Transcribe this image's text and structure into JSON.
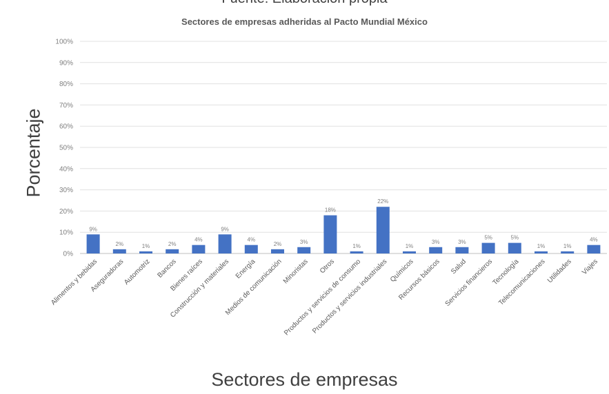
{
  "top_caption": "Fuente: Elaboración propia",
  "colors": {
    "bar": "#4472c4",
    "grid": "#e0e0e0",
    "text": "#595959"
  },
  "chart_data": {
    "type": "bar",
    "title": "Sectores de empresas adheridas al Pacto Mundial México",
    "xlabel": "Sectores de empresas",
    "ylabel": "Porcentaje",
    "ylim": [
      0,
      100
    ],
    "yticks": [
      "0%",
      "10%",
      "20%",
      "30%",
      "40%",
      "50%",
      "60%",
      "70%",
      "80%",
      "90%",
      "100%"
    ],
    "grid": true,
    "legend": "none",
    "categories": [
      "Alimentos y bebidas",
      "Aseguradoras",
      "Automotriz",
      "Bancos",
      "Bienes raíces",
      "Construcción y materiales",
      "Energía",
      "Medios de comunicación",
      "Minoristas",
      "Otros",
      "Productos y servicios de consumo",
      "Productos y servicios industriales",
      "Químicos",
      "Recursos básicos",
      "Salud",
      "Servicios financieros",
      "Tecnología",
      "Telecomunicaciones",
      "Utilidades",
      "Viajes"
    ],
    "values": [
      9,
      2,
      1,
      2,
      4,
      9,
      4,
      2,
      3,
      18,
      1,
      22,
      1,
      3,
      3,
      5,
      5,
      1,
      1,
      4
    ],
    "data_labels": [
      "9%",
      "2%",
      "1%",
      "2%",
      "4%",
      "9%",
      "4%",
      "2%",
      "3%",
      "18%",
      "1%",
      "22%",
      "1%",
      "3%",
      "3%",
      "5%",
      "5%",
      "1%",
      "1%",
      "4%"
    ]
  }
}
